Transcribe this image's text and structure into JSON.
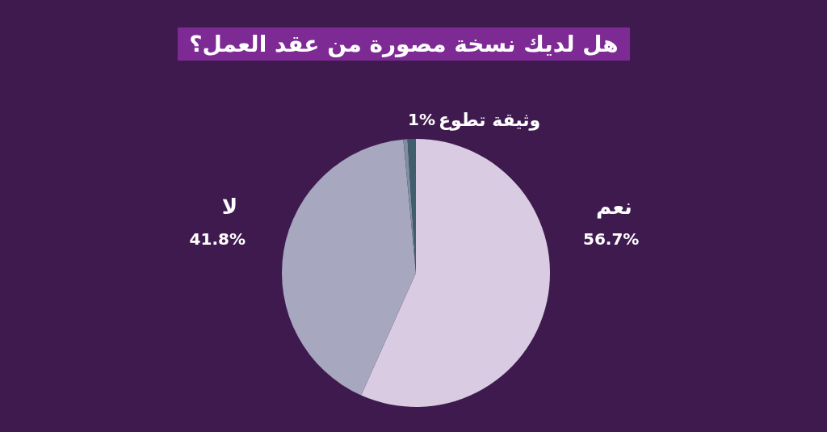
{
  "chart_data": {
    "type": "pie",
    "title": "هل لديك نسخة مصورة من عقد العمل؟",
    "categories": [
      "نعم",
      "لا",
      null,
      "وثيقة تطوع"
    ],
    "values": [
      56.7,
      41.8,
      0.5,
      1
    ],
    "value_labels": [
      "56.7%",
      "41.8%",
      null,
      "1%"
    ],
    "colors": [
      "#d9cbe2",
      "#a7a7bf",
      "#7f8ea0",
      "#3f5f6e"
    ],
    "legend": false
  }
}
